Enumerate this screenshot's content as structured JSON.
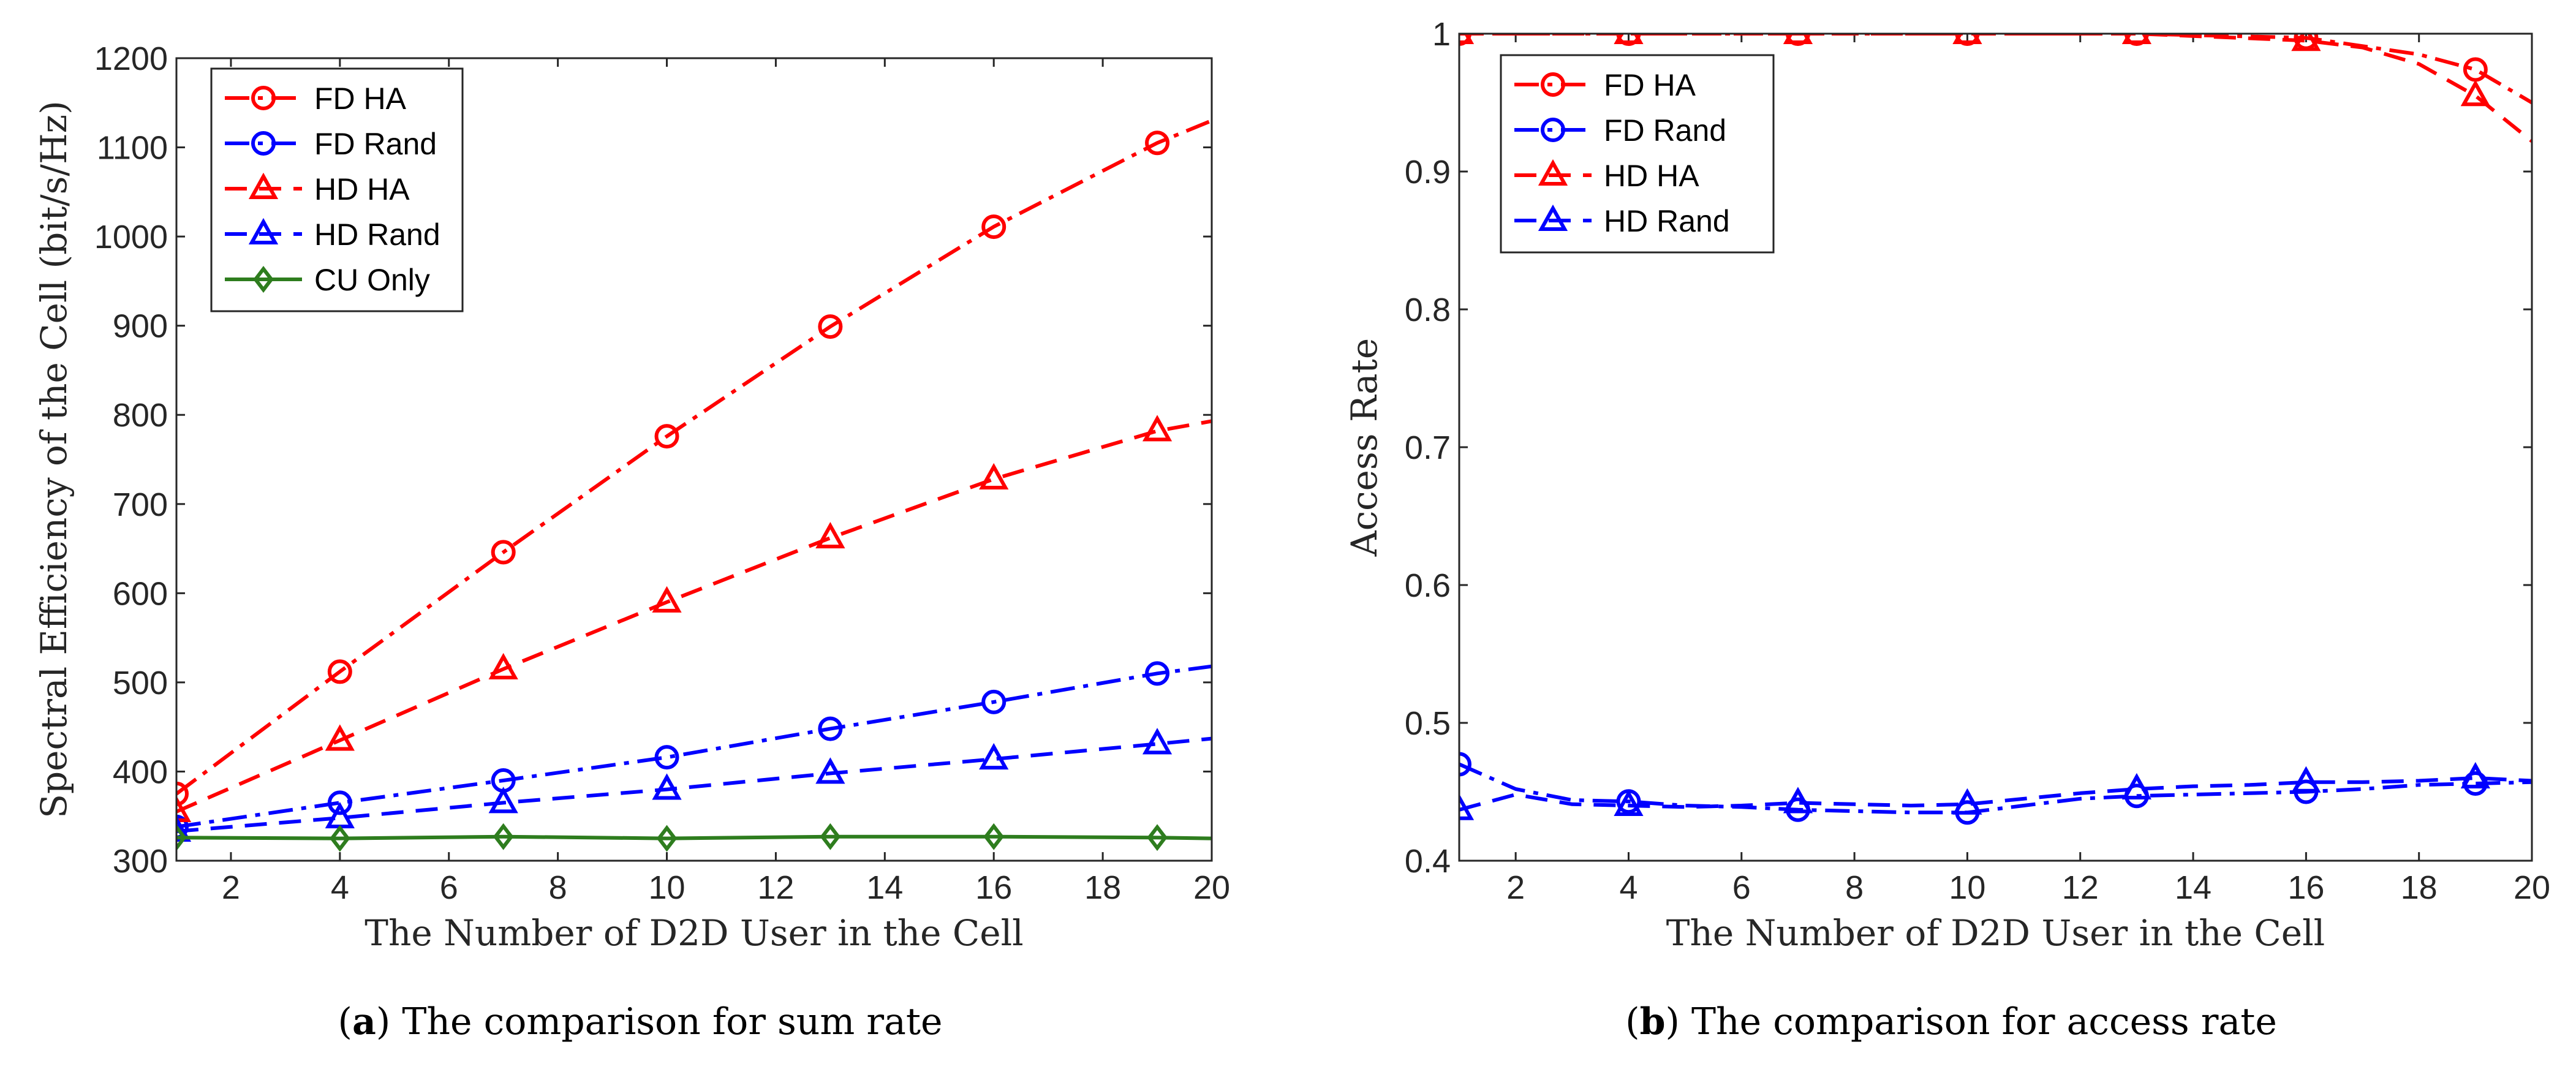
{
  "chart_data": [
    {
      "type": "line",
      "id": "a",
      "xlabel": "The Number of D2D User in the Cell",
      "ylabel": "Spectral Efficiency of the Cell (bit/s/Hz)",
      "xlim": [
        1,
        20
      ],
      "ylim": [
        300,
        1200
      ],
      "xticks": [
        2,
        4,
        6,
        8,
        10,
        12,
        14,
        16,
        18,
        20
      ],
      "yticks": [
        300,
        400,
        500,
        600,
        700,
        800,
        900,
        1000,
        1100,
        1200
      ],
      "legend_position": "top-left",
      "x": [
        1,
        4,
        7,
        10,
        13,
        16,
        19,
        20
      ],
      "series": [
        {
          "name": "FD HA",
          "color": "#ff0000",
          "marker": "circle",
          "dash": "dashdot",
          "values": [
            375,
            512,
            646,
            776,
            899,
            1011,
            1105,
            1130
          ]
        },
        {
          "name": "FD Rand",
          "color": "#0000ff",
          "marker": "circle",
          "dash": "dashdot",
          "values": [
            338,
            365,
            390,
            416,
            448,
            478,
            510,
            518
          ]
        },
        {
          "name": "HD HA",
          "color": "#ff0000",
          "marker": "triangle",
          "dash": "dashed",
          "values": [
            355,
            435,
            515,
            590,
            662,
            728,
            782,
            793
          ]
        },
        {
          "name": "HD Rand",
          "color": "#0000ff",
          "marker": "triangle",
          "dash": "dashed",
          "values": [
            333,
            348,
            365,
            380,
            398,
            414,
            431,
            437
          ]
        },
        {
          "name": "CU Only",
          "color": "#2e7d1e",
          "marker": "diamond",
          "dash": "solid",
          "values": [
            326,
            325,
            327,
            325,
            327,
            327,
            326,
            325
          ]
        }
      ]
    },
    {
      "type": "line",
      "id": "b",
      "xlabel": "The Number of D2D User in the Cell",
      "ylabel": "Access Rate",
      "xlim": [
        1,
        20
      ],
      "ylim": [
        0.4,
        1.0
      ],
      "xticks": [
        2,
        4,
        6,
        8,
        10,
        12,
        14,
        16,
        18,
        20
      ],
      "yticks": [
        0.4,
        0.5,
        0.6,
        0.7,
        0.8,
        0.9,
        1.0
      ],
      "ytick_labels": [
        "0.4",
        "0.5",
        "0.6",
        "0.7",
        "0.8",
        "0.9",
        "1"
      ],
      "legend_position": "top-left",
      "series": [
        {
          "name": "FD HA",
          "color": "#ff0000",
          "marker": "circle",
          "dash": "dashdot",
          "x": [
            1,
            4,
            7,
            10,
            13,
            16,
            18,
            19,
            20
          ],
          "values": [
            1.0,
            1.0,
            1.0,
            1.0,
            1.0,
            0.997,
            0.985,
            0.974,
            0.95
          ],
          "marker_x": [
            1,
            4,
            7,
            10,
            13,
            16,
            19
          ]
        },
        {
          "name": "FD Rand",
          "color": "#0000ff",
          "marker": "circle",
          "dash": "dashdot",
          "x": [
            1,
            2,
            3,
            4,
            5,
            6,
            7,
            8,
            9,
            10,
            11,
            12,
            13,
            14,
            15,
            16,
            17,
            18,
            19,
            20
          ],
          "values": [
            0.47,
            0.452,
            0.444,
            0.443,
            0.44,
            0.439,
            0.437,
            0.436,
            0.435,
            0.435,
            0.44,
            0.445,
            0.447,
            0.448,
            0.449,
            0.45,
            0.452,
            0.455,
            0.456,
            0.457
          ],
          "marker_x": [
            1,
            4,
            7,
            10,
            13,
            16,
            19
          ]
        },
        {
          "name": "HD HA",
          "color": "#ff0000",
          "marker": "triangle",
          "dash": "dashed",
          "x": [
            1,
            4,
            7,
            10,
            13,
            16,
            17,
            18,
            19,
            20
          ],
          "values": [
            1.0,
            1.0,
            1.0,
            1.0,
            1.0,
            0.995,
            0.99,
            0.978,
            0.955,
            0.922
          ],
          "marker_x": [
            1,
            4,
            7,
            10,
            13,
            16,
            19
          ]
        },
        {
          "name": "HD Rand",
          "color": "#0000ff",
          "marker": "triangle",
          "dash": "dashed",
          "x": [
            1,
            2,
            3,
            4,
            5,
            6,
            7,
            8,
            9,
            10,
            11,
            12,
            13,
            14,
            15,
            16,
            17,
            18,
            19,
            20
          ],
          "values": [
            0.437,
            0.448,
            0.441,
            0.44,
            0.439,
            0.44,
            0.442,
            0.441,
            0.44,
            0.441,
            0.445,
            0.449,
            0.452,
            0.454,
            0.455,
            0.457,
            0.457,
            0.458,
            0.46,
            0.458
          ],
          "marker_x": [
            1,
            4,
            7,
            10,
            13,
            16,
            19
          ]
        }
      ]
    }
  ],
  "captions": {
    "a": {
      "tag": "(a)",
      "letter": "a",
      "text": " The comparison for sum rate"
    },
    "b": {
      "tag": "(b)",
      "letter": "b",
      "text": " The comparison for access rate"
    }
  }
}
